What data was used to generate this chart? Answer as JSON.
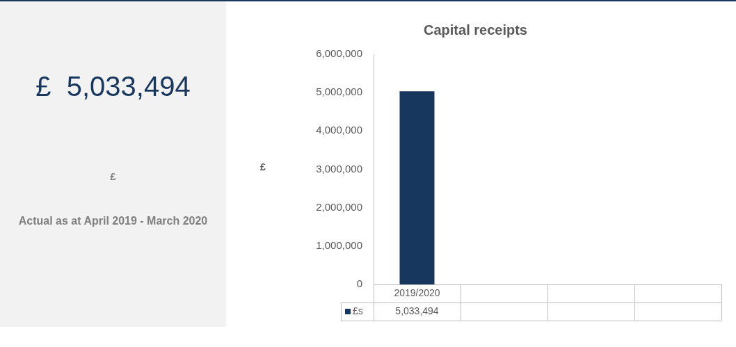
{
  "chart_data": [
    {
      "type": "other",
      "title": "£  5,033,494",
      "annotations": [
        "£",
        "Actual as at April 2019 - March 2020"
      ]
    },
    {
      "type": "bar",
      "title": "Capital receipts",
      "ylabel": "£",
      "categories": [
        "2019/2020",
        null,
        null,
        null
      ],
      "series": [
        {
          "name": "£s",
          "color": "#17375e",
          "values": [
            5033494,
            null,
            null,
            null
          ],
          "value_labels": [
            "5,033,494",
            null,
            null,
            null
          ]
        }
      ],
      "ylim": [
        0,
        6000000
      ],
      "yticks": [
        {
          "value": 0,
          "label": "0"
        },
        {
          "value": 1000000,
          "label": "1,000,000"
        },
        {
          "value": 2000000,
          "label": "2,000,000"
        },
        {
          "value": 3000000,
          "label": "3,000,000"
        },
        {
          "value": 4000000,
          "label": "4,000,000"
        },
        {
          "value": 5000000,
          "label": "5,000,000"
        },
        {
          "value": 6000000,
          "label": "6,000,000"
        }
      ],
      "grid": false,
      "legend": "bottom"
    }
  ]
}
